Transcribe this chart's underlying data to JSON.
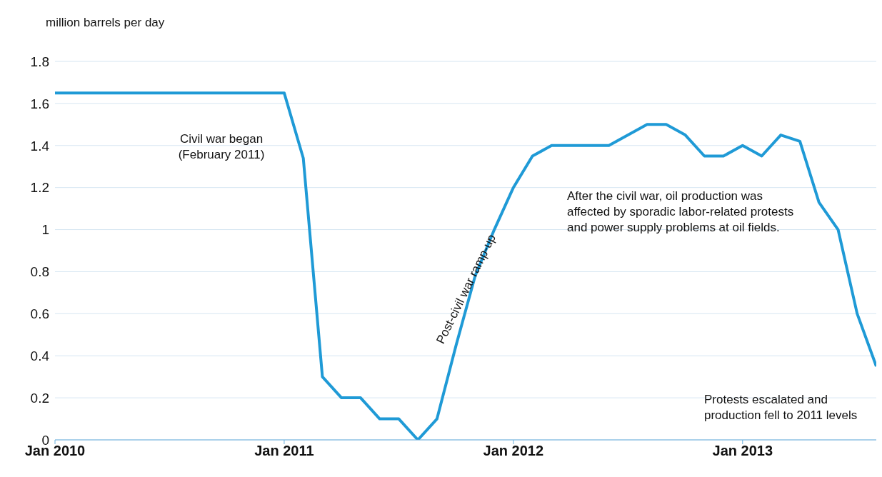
{
  "chart_data": {
    "type": "line",
    "ylabel": "million barrels per day",
    "x": [
      "2010-01",
      "2010-02",
      "2010-03",
      "2010-04",
      "2010-05",
      "2010-06",
      "2010-07",
      "2010-08",
      "2010-09",
      "2010-10",
      "2010-11",
      "2010-12",
      "2011-01",
      "2011-02",
      "2011-03",
      "2011-04",
      "2011-05",
      "2011-06",
      "2011-07",
      "2011-08",
      "2011-09",
      "2011-10",
      "2011-11",
      "2011-12",
      "2012-01",
      "2012-02",
      "2012-03",
      "2012-04",
      "2012-05",
      "2012-06",
      "2012-07",
      "2012-08",
      "2012-09",
      "2012-10",
      "2012-11",
      "2012-12",
      "2013-01",
      "2013-02",
      "2013-03",
      "2013-04",
      "2013-05",
      "2013-06",
      "2013-07",
      "2013-08"
    ],
    "series": [
      {
        "color": "#1f9ad6",
        "values": [
          1.65,
          1.65,
          1.65,
          1.65,
          1.65,
          1.65,
          1.65,
          1.65,
          1.65,
          1.65,
          1.65,
          1.65,
          1.65,
          1.34,
          0.3,
          0.2,
          0.2,
          0.1,
          0.1,
          0,
          0.1,
          0.45,
          0.78,
          1.0,
          1.2,
          1.35,
          1.4,
          1.4,
          1.4,
          1.4,
          1.45,
          1.5,
          1.5,
          1.45,
          1.35,
          1.35,
          1.4,
          1.35,
          1.45,
          1.42,
          1.13,
          1.0,
          0.6,
          0.35
        ]
      }
    ],
    "xlim": [
      "2010-01",
      "2013-08"
    ],
    "xticks": [
      {
        "value": "2010-01",
        "label": "Jan 2010"
      },
      {
        "value": "2011-01",
        "label": "Jan 2011"
      },
      {
        "value": "2012-01",
        "label": "Jan 2012"
      },
      {
        "value": "2013-01",
        "label": "Jan 2013"
      }
    ],
    "ylim": [
      0,
      1.8
    ],
    "yticks": [
      0,
      0.2,
      0.4,
      0.6,
      0.8,
      1,
      1.2,
      1.4,
      1.6,
      1.8
    ],
    "grid": "y",
    "legend": false,
    "marker": "none",
    "line_style": "solid",
    "annotations": [
      "Civil war began (February 2011)",
      "Post-civil war ramp-up",
      "After the civil war, oil production was affected by sporadic labor-related protests and power supply problems at oil fields.",
      "Protests escalated and production fell to 2011 levels"
    ]
  }
}
